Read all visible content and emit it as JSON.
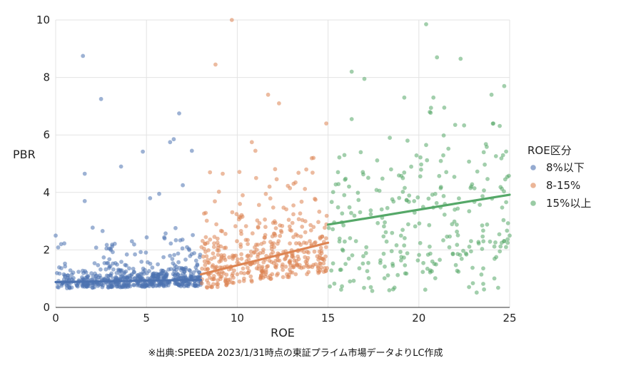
{
  "chart_data": {
    "type": "scatter",
    "xlabel": "ROE",
    "ylabel": "PBR",
    "xlim": [
      0,
      25
    ],
    "ylim": [
      0,
      10
    ],
    "x_ticks": [
      "0",
      "5",
      "10",
      "15",
      "20",
      "25"
    ],
    "y_ticks": [
      "0",
      "2",
      "4",
      "6",
      "8",
      "10"
    ],
    "grid": true,
    "legend": {
      "title": "ROE区分",
      "placement": "right"
    },
    "series": [
      {
        "name": "8%以下",
        "color": "#4c72b0",
        "x_range": [
          0,
          8
        ],
        "trend": [
          [
            0,
            0.88
          ],
          [
            8,
            0.96
          ]
        ],
        "sample_points": [
          [
            1.5,
            8.75
          ],
          [
            2.5,
            7.25
          ],
          [
            6.8,
            6.75
          ],
          [
            6.5,
            5.85
          ],
          [
            6.3,
            5.75
          ],
          [
            7.5,
            5.45
          ],
          [
            4.8,
            5.42
          ],
          [
            3.6,
            4.9
          ],
          [
            1.6,
            4.65
          ],
          [
            7.0,
            4.25
          ],
          [
            5.7,
            3.95
          ],
          [
            5.2,
            3.8
          ],
          [
            1.6,
            3.7
          ],
          [
            0.0,
            2.5
          ],
          [
            0.3,
            2.2
          ],
          [
            2.8,
            2.05
          ],
          [
            4.2,
            2.3
          ],
          [
            6.0,
            2.4
          ]
        ],
        "n_background": 560
      },
      {
        "name": "8-15%",
        "color": "#dd8452",
        "x_range": [
          8,
          15
        ],
        "trend": [
          [
            8,
            1.15
          ],
          [
            15,
            2.25
          ]
        ],
        "sample_points": [
          [
            9.7,
            10.0
          ],
          [
            8.8,
            8.45
          ],
          [
            11.7,
            7.4
          ],
          [
            12.3,
            7.1
          ],
          [
            14.9,
            6.4
          ],
          [
            10.8,
            5.75
          ],
          [
            11.0,
            5.45
          ],
          [
            14.2,
            5.2
          ],
          [
            9.2,
            4.65
          ],
          [
            8.5,
            4.7
          ],
          [
            13.1,
            4.3
          ],
          [
            12.9,
            4.15
          ],
          [
            13.8,
            4.8
          ],
          [
            10.3,
            3.9
          ]
        ],
        "n_background": 420
      },
      {
        "name": "15%以上",
        "color": "#55a868",
        "x_range": [
          15,
          25
        ],
        "trend": [
          [
            15,
            2.88
          ],
          [
            25,
            3.92
          ]
        ],
        "sample_points": [
          [
            20.4,
            9.85
          ],
          [
            21.0,
            8.7
          ],
          [
            22.3,
            8.65
          ],
          [
            16.3,
            8.2
          ],
          [
            17.0,
            7.95
          ],
          [
            24.7,
            7.7
          ],
          [
            24.0,
            7.4
          ],
          [
            19.2,
            7.3
          ],
          [
            20.8,
            7.3
          ],
          [
            20.6,
            6.8
          ],
          [
            16.3,
            6.55
          ],
          [
            21.4,
            6.95
          ],
          [
            22.0,
            6.35
          ],
          [
            18.4,
            5.9
          ],
          [
            20.4,
            5.65
          ],
          [
            24.1,
            6.4
          ],
          [
            16.8,
            5.4
          ],
          [
            15.9,
            5.3
          ],
          [
            25.0,
            2.5
          ],
          [
            24.8,
            2.1
          ]
        ],
        "n_background": 260
      }
    ],
    "source_note": "※出典:SPEEDA 2023/1/31時点の東証プライム市場データよりLC作成"
  }
}
